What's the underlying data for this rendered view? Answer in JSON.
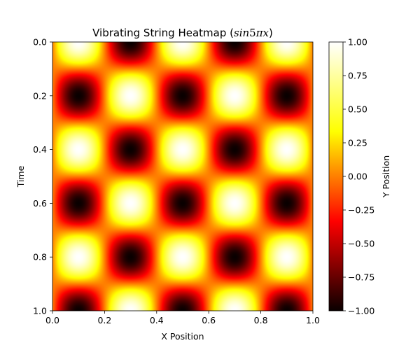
{
  "chart_data": {
    "type": "heatmap",
    "title": {
      "prefix": "Vibrating String Heatmap (",
      "math_italic_1": "sin",
      "math_upright": "5",
      "math_italic_2": "πx",
      "suffix": ")"
    },
    "xlabel": "X Position",
    "ylabel": "Time",
    "colorbar_label": "Y Position",
    "colormap": "hot",
    "colormap_stops": [
      "#0a0000",
      "#ff0000",
      "#ffff00",
      "#ffffff"
    ],
    "formula": "sin(5πx)·cos(5πt)",
    "x_range": [
      0.0,
      1.0
    ],
    "y_range": [
      0.0,
      1.0
    ],
    "y_inverted": true,
    "value_range": [
      -1.0,
      1.0
    ],
    "xticks": [
      "0.0",
      "0.2",
      "0.4",
      "0.6",
      "0.8",
      "1.0"
    ],
    "yticks": [
      "0.0",
      "0.2",
      "0.4",
      "0.6",
      "0.8",
      "1.0"
    ],
    "colorbar_ticks": [
      "−1.00",
      "−0.75",
      "−0.50",
      "−0.25",
      "0.00",
      "0.25",
      "0.50",
      "0.75",
      "1.00"
    ],
    "grid": false
  }
}
